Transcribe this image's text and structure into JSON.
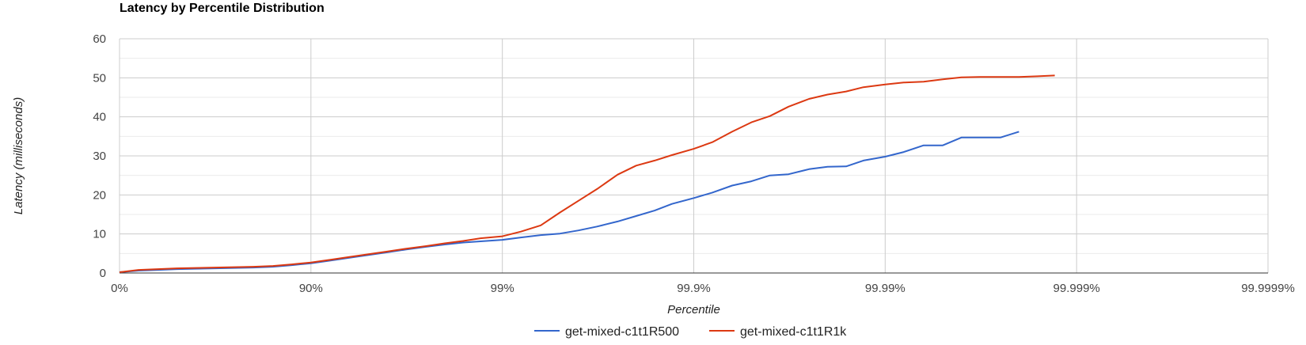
{
  "chart_data": {
    "type": "line",
    "title": "Latency by Percentile Distribution",
    "xlabel": "Percentile",
    "ylabel": "Latency (milliseconds)",
    "x_scale": "percentile (-log10(1 - p))",
    "x_ticks": [
      "0%",
      "90%",
      "99%",
      "99.9%",
      "99.99%",
      "99.999%",
      "99.9999%"
    ],
    "x_tick_values": [
      0,
      90,
      99,
      99.9,
      99.99,
      99.999,
      99.9999
    ],
    "xlim": [
      0,
      99.9999
    ],
    "ylim": [
      0,
      60
    ],
    "y_ticks": [
      "0",
      "10",
      "20",
      "30",
      "40",
      "50",
      "60"
    ],
    "y_tick_values": [
      0,
      10,
      20,
      30,
      40,
      50,
      60
    ],
    "grid": true,
    "legend_position": "bottom",
    "series": [
      {
        "name": "get-mixed-c1t1R500",
        "color": "#3366cc",
        "points": [
          [
            0,
            0.2
          ],
          [
            20.5,
            0.6
          ],
          [
            36.9,
            0.8
          ],
          [
            49.9,
            1.0
          ],
          [
            60.2,
            1.1
          ],
          [
            68.4,
            1.2
          ],
          [
            74.9,
            1.3
          ],
          [
            80.0,
            1.4
          ],
          [
            84.2,
            1.6
          ],
          [
            87.4,
            2.0
          ],
          [
            90.0,
            2.5
          ],
          [
            92.1,
            3.2
          ],
          [
            93.7,
            3.9
          ],
          [
            95.0,
            4.6
          ],
          [
            96.0,
            5.3
          ],
          [
            96.8,
            6.0
          ],
          [
            97.5,
            6.7
          ],
          [
            98.0,
            7.3
          ],
          [
            98.4,
            7.8
          ],
          [
            98.7,
            8.1
          ],
          [
            99.0,
            8.5
          ],
          [
            99.2,
            9.1
          ],
          [
            99.37,
            9.7
          ],
          [
            99.5,
            10.1
          ],
          [
            99.6,
            10.9
          ],
          [
            99.68,
            11.9
          ],
          [
            99.75,
            13.2
          ],
          [
            99.8,
            14.6
          ],
          [
            99.84,
            16.0
          ],
          [
            99.87,
            17.7
          ],
          [
            99.9,
            19.2
          ],
          [
            99.92,
            20.6
          ],
          [
            99.937,
            22.4
          ],
          [
            99.95,
            23.5
          ],
          [
            99.96,
            25.0
          ],
          [
            99.968,
            25.3
          ],
          [
            99.975,
            26.6
          ],
          [
            99.98,
            27.2
          ],
          [
            99.984,
            27.3
          ],
          [
            99.987,
            28.8
          ],
          [
            99.99,
            29.8
          ],
          [
            99.992,
            31.0
          ],
          [
            99.9937,
            32.7
          ],
          [
            99.995,
            32.7
          ],
          [
            99.996,
            34.7
          ],
          [
            99.9968,
            34.7
          ],
          [
            99.9975,
            34.7
          ],
          [
            99.998,
            36.2
          ]
        ]
      },
      {
        "name": "get-mixed-c1t1R1k",
        "color": "#dc3912",
        "points": [
          [
            0,
            0.2
          ],
          [
            20.5,
            0.8
          ],
          [
            36.9,
            1.0
          ],
          [
            49.9,
            1.2
          ],
          [
            60.2,
            1.3
          ],
          [
            68.4,
            1.4
          ],
          [
            74.9,
            1.5
          ],
          [
            80.0,
            1.6
          ],
          [
            84.2,
            1.8
          ],
          [
            87.4,
            2.2
          ],
          [
            90.0,
            2.7
          ],
          [
            92.1,
            3.4
          ],
          [
            93.7,
            4.1
          ],
          [
            95.0,
            4.8
          ],
          [
            96.0,
            5.5
          ],
          [
            96.8,
            6.2
          ],
          [
            97.5,
            6.9
          ],
          [
            98.0,
            7.6
          ],
          [
            98.4,
            8.2
          ],
          [
            98.7,
            8.9
          ],
          [
            99.0,
            9.4
          ],
          [
            99.2,
            10.6
          ],
          [
            99.37,
            12.2
          ],
          [
            99.5,
            15.5
          ],
          [
            99.6,
            18.5
          ],
          [
            99.68,
            21.5
          ],
          [
            99.75,
            25.2
          ],
          [
            99.8,
            27.5
          ],
          [
            99.84,
            28.8
          ],
          [
            99.87,
            30.2
          ],
          [
            99.9,
            31.8
          ],
          [
            99.92,
            33.5
          ],
          [
            99.937,
            36.2
          ],
          [
            99.95,
            38.6
          ],
          [
            99.96,
            40.2
          ],
          [
            99.968,
            42.6
          ],
          [
            99.975,
            44.6
          ],
          [
            99.98,
            45.7
          ],
          [
            99.984,
            46.5
          ],
          [
            99.987,
            47.6
          ],
          [
            99.99,
            48.3
          ],
          [
            99.992,
            48.8
          ],
          [
            99.9937,
            49.0
          ],
          [
            99.995,
            49.6
          ],
          [
            99.996,
            50.1
          ],
          [
            99.9968,
            50.2
          ],
          [
            99.9975,
            50.2
          ],
          [
            99.998,
            50.2
          ],
          [
            99.9984,
            50.4
          ],
          [
            99.9987,
            50.6
          ]
        ]
      }
    ]
  }
}
